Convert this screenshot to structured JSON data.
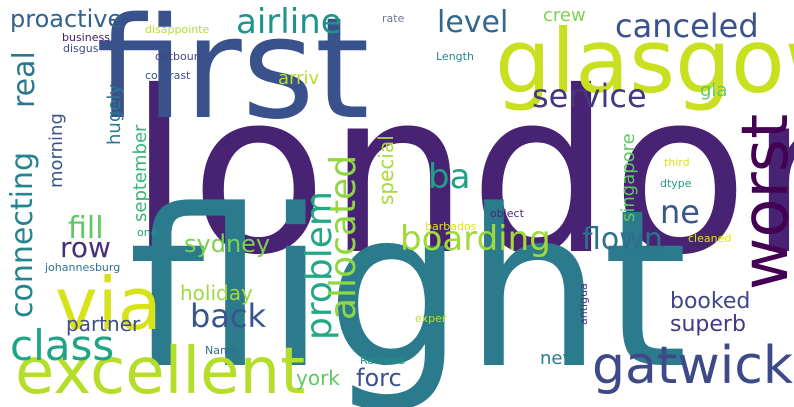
{
  "words": [
    {
      "text": "london",
      "color": "#482374",
      "vertical": false
    },
    {
      "text": "flight",
      "color": "#2c7b8d",
      "vertical": false
    },
    {
      "text": "first",
      "color": "#3a528b",
      "vertical": false
    },
    {
      "text": "glasgow",
      "color": "#c8e020",
      "vertical": false
    },
    {
      "text": "worst",
      "color": "#440154",
      "vertical": true
    },
    {
      "text": "via",
      "color": "#d8e219",
      "vertical": false
    },
    {
      "text": "excellent",
      "color": "#b5de2b",
      "vertical": false
    },
    {
      "text": "gatwick",
      "color": "#3e4989",
      "vertical": false
    },
    {
      "text": "class",
      "color": "#20a486",
      "vertical": false
    },
    {
      "text": "airline",
      "color": "#1f948c",
      "vertical": false
    },
    {
      "text": "canceled",
      "color": "#3b528b",
      "vertical": false
    },
    {
      "text": "service",
      "color": "#453781",
      "vertical": false
    },
    {
      "text": "boarding",
      "color": "#a0da39",
      "vertical": false
    },
    {
      "text": "flown",
      "color": "#2d708e",
      "vertical": false
    },
    {
      "text": "back",
      "color": "#39568c",
      "vertical": false
    },
    {
      "text": "problem",
      "color": "#22a884",
      "vertical": true
    },
    {
      "text": "allocated",
      "color": "#90d743",
      "vertical": true
    },
    {
      "text": "connecting",
      "color": "#25858e",
      "vertical": true
    },
    {
      "text": "level",
      "color": "#31688e",
      "vertical": false
    },
    {
      "text": "ba",
      "color": "#1fa187",
      "vertical": false
    },
    {
      "text": "ne",
      "color": "#38588c",
      "vertical": false
    },
    {
      "text": "row",
      "color": "#472d7b",
      "vertical": false
    },
    {
      "text": "fill",
      "color": "#5ec962",
      "vertical": false
    },
    {
      "text": "real",
      "color": "#2a788e",
      "vertical": true
    },
    {
      "text": "proactive",
      "color": "#33638d",
      "vertical": false
    },
    {
      "text": "sydney",
      "color": "#7ad151",
      "vertical": false
    },
    {
      "text": "forc",
      "color": "#3b528b",
      "vertical": false
    },
    {
      "text": "holiday",
      "color": "#9fda3a",
      "vertical": false
    },
    {
      "text": "booked",
      "color": "#3f4788",
      "vertical": false
    },
    {
      "text": "superb",
      "color": "#443983",
      "vertical": false
    },
    {
      "text": "partner",
      "color": "#3d4e8a",
      "vertical": false
    },
    {
      "text": "york",
      "color": "#5ec962",
      "vertical": false
    },
    {
      "text": "new",
      "color": "#277f8e",
      "vertical": false
    },
    {
      "text": "special",
      "color": "#a8db34",
      "vertical": true
    },
    {
      "text": "singapore",
      "color": "#5ec962",
      "vertical": true
    },
    {
      "text": "september",
      "color": "#35b779",
      "vertical": true
    },
    {
      "text": "morning",
      "color": "#39568c",
      "vertical": true
    },
    {
      "text": "hugely",
      "color": "#2a788e",
      "vertical": true
    },
    {
      "text": "arriv",
      "color": "#b8de29",
      "vertical": false
    },
    {
      "text": "crew",
      "color": "#7fd34e",
      "vertical": false
    },
    {
      "text": "gla",
      "color": "#5ec962",
      "vertical": false
    },
    {
      "text": "business",
      "color": "#481a6c",
      "vertical": false
    },
    {
      "text": "disappointe",
      "color": "#b5de2b",
      "vertical": false
    },
    {
      "text": "disgus",
      "color": "#3e4989",
      "vertical": false
    },
    {
      "text": "outboun",
      "color": "#414487",
      "vertical": false
    },
    {
      "text": "Length",
      "color": "#24868e",
      "vertical": false
    },
    {
      "text": "contrast",
      "color": "#3b528b",
      "vertical": false
    },
    {
      "text": "rate",
      "color": "#6b7b8e",
      "vertical": false
    },
    {
      "text": "johannesburg",
      "color": "#2c728e",
      "vertical": false
    },
    {
      "text": "one",
      "color": "#1e9c89",
      "vertical": false
    },
    {
      "text": "barbados",
      "color": "#dde318",
      "vertical": false
    },
    {
      "text": "object",
      "color": "#472c7a",
      "vertical": false
    },
    {
      "text": "cleaned",
      "color": "#dde318",
      "vertical": false
    },
    {
      "text": "third",
      "color": "#d8e219",
      "vertical": false
    },
    {
      "text": "dtype",
      "color": "#1f9a8a",
      "vertical": false
    },
    {
      "text": "antigua",
      "color": "#453882",
      "vertical": true
    },
    {
      "text": "exper",
      "color": "#b5de2b",
      "vertical": false
    },
    {
      "text": "Name",
      "color": "#2e6e8e",
      "vertical": false
    },
    {
      "text": "Reviews",
      "color": "#1f958b",
      "vertical": false
    }
  ]
}
